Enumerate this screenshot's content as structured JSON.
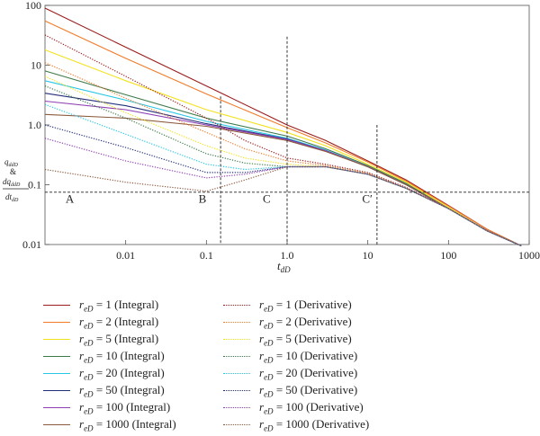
{
  "chart_data": {
    "type": "line",
    "xscale": "log",
    "yscale": "log",
    "xlim": [
      0.001,
      1000
    ],
    "ylim": [
      0.01,
      100
    ],
    "xlabel": "t_dD",
    "ylabel": "q_ddD & dq_ddD/dt_dD",
    "x_ticks": [
      {
        "value": 0.01,
        "label": "0.01"
      },
      {
        "value": 0.1,
        "label": "0.1"
      },
      {
        "value": 1,
        "label": "1.0"
      },
      {
        "value": 10,
        "label": "10"
      },
      {
        "value": 100,
        "label": "100"
      },
      {
        "value": 1000,
        "label": "1000"
      }
    ],
    "y_ticks": [
      {
        "value": 0.01,
        "label": "0.01"
      },
      {
        "value": 0.1,
        "label": "0.1"
      },
      {
        "value": 1,
        "label": "1.0"
      },
      {
        "value": 10,
        "label": "10"
      },
      {
        "value": 100,
        "label": "100"
      }
    ],
    "ref_hline": 0.075,
    "ref_vlines": [
      0.15,
      1.0,
      13
    ],
    "region_labels": [
      {
        "text": "A",
        "x": 0.0018,
        "y": 0.05
      },
      {
        "text": "B",
        "x": 0.08,
        "y": 0.05
      },
      {
        "text": "C",
        "x": 0.5,
        "y": 0.05
      },
      {
        "text": "C′",
        "x": 8.5,
        "y": 0.05
      }
    ],
    "series": [
      {
        "name": "rₑD = 1 (Integral)",
        "label_sym": "r",
        "label_sub": "eD",
        "label_rest": " = 1 (Integral)",
        "color": "#9b1c1c",
        "style": "solid",
        "x": [
          0.001,
          0.01,
          0.1,
          1,
          3,
          10,
          30,
          100,
          300,
          800
        ],
        "y": [
          90,
          20,
          4.5,
          1.0,
          0.55,
          0.25,
          0.12,
          0.045,
          0.018,
          0.0095
        ]
      },
      {
        "name": "rₑD = 2 (Integral)",
        "label_sym": "r",
        "label_sub": "eD",
        "label_rest": " = 2 (Integral)",
        "color": "#f07c2a",
        "style": "solid",
        "x": [
          0.001,
          0.01,
          0.1,
          1,
          3,
          10,
          30,
          100,
          300,
          800
        ],
        "y": [
          55,
          13,
          3.3,
          0.9,
          0.5,
          0.24,
          0.115,
          0.044,
          0.018,
          0.0095
        ]
      },
      {
        "name": "rₑD = 5 (Integral)",
        "label_sym": "r",
        "label_sub": "eD",
        "label_rest": " = 5 (Integral)",
        "color": "#f2e21e",
        "style": "solid",
        "x": [
          0.001,
          0.01,
          0.1,
          1,
          3,
          10,
          30,
          100,
          300,
          800
        ],
        "y": [
          18,
          5.5,
          1.8,
          0.75,
          0.45,
          0.22,
          0.11,
          0.042,
          0.017,
          0.0095
        ]
      },
      {
        "name": "rₑD = 10 (Integral)",
        "label_sym": "r",
        "label_sub": "eD",
        "label_rest": " = 10 (Integral)",
        "color": "#3d7a4a",
        "style": "solid",
        "x": [
          0.001,
          0.01,
          0.1,
          1,
          3,
          10,
          30,
          100,
          300,
          800
        ],
        "y": [
          8,
          3.2,
          1.3,
          0.65,
          0.4,
          0.21,
          0.105,
          0.04,
          0.017,
          0.0095
        ]
      },
      {
        "name": "rₑD = 20 (Integral)",
        "label_sym": "r",
        "label_sub": "eD",
        "label_rest": " = 20 (Integral)",
        "color": "#29c7e6",
        "style": "solid",
        "x": [
          0.001,
          0.01,
          0.1,
          1,
          3,
          10,
          30,
          100,
          300,
          800
        ],
        "y": [
          5.5,
          2.6,
          1.15,
          0.6,
          0.38,
          0.2,
          0.1,
          0.04,
          0.017,
          0.0095
        ]
      },
      {
        "name": "rₑD = 50 (Integral)",
        "label_sym": "r",
        "label_sub": "eD",
        "label_rest": " = 50 (Integral)",
        "color": "#232f7a",
        "style": "solid",
        "x": [
          0.001,
          0.01,
          0.1,
          1,
          3,
          10,
          30,
          100,
          300,
          800
        ],
        "y": [
          3.4,
          2.1,
          1.05,
          0.58,
          0.37,
          0.2,
          0.1,
          0.04,
          0.017,
          0.0095
        ]
      },
      {
        "name": "rₑD = 100 (Integral)",
        "label_sym": "r",
        "label_sub": "eD",
        "label_rest": " = 100 (Integral)",
        "color": "#8e3fb5",
        "style": "solid",
        "x": [
          0.001,
          0.01,
          0.1,
          1,
          3,
          10,
          30,
          100,
          300,
          800
        ],
        "y": [
          2.5,
          1.8,
          1.0,
          0.57,
          0.37,
          0.2,
          0.1,
          0.04,
          0.017,
          0.0095
        ]
      },
      {
        "name": "rₑD = 1000 (Integral)",
        "label_sym": "r",
        "label_sub": "eD",
        "label_rest": " = 1000 (Integral)",
        "color": "#8b5a3c",
        "style": "solid",
        "x": [
          0.001,
          0.01,
          0.1,
          1,
          3,
          10,
          30,
          100,
          300,
          800
        ],
        "y": [
          1.5,
          1.3,
          0.95,
          0.55,
          0.36,
          0.2,
          0.1,
          0.04,
          0.017,
          0.0095
        ]
      },
      {
        "name": "rₑD = 1 (Derivative)",
        "label_sym": "r",
        "label_sub": "eD",
        "label_rest": " = 1 (Derivative)",
        "color": "#9b1c1c",
        "style": "dotted",
        "x": [
          0.001,
          0.01,
          0.1,
          0.3,
          1,
          3,
          10,
          30,
          100,
          300,
          800
        ],
        "y": [
          32,
          6.5,
          1.3,
          0.55,
          0.28,
          0.22,
          0.16,
          0.09,
          0.04,
          0.017,
          0.0095
        ]
      },
      {
        "name": "rₑD = 2 (Derivative)",
        "label_sym": "r",
        "label_sub": "eD",
        "label_rest": " = 2 (Derivative)",
        "color": "#f07c2a",
        "style": "dotted",
        "x": [
          0.001,
          0.01,
          0.1,
          0.3,
          1,
          3,
          10,
          30,
          100,
          300,
          800
        ],
        "y": [
          11,
          2.8,
          0.75,
          0.4,
          0.25,
          0.21,
          0.155,
          0.088,
          0.04,
          0.017,
          0.0095
        ]
      },
      {
        "name": "rₑD = 5 (Derivative)",
        "label_sym": "r",
        "label_sub": "eD",
        "label_rest": " = 5 (Derivative)",
        "color": "#f2e21e",
        "style": "dotted",
        "x": [
          0.001,
          0.01,
          0.1,
          0.3,
          1,
          3,
          10,
          30,
          100,
          300,
          800
        ],
        "y": [
          6.5,
          1.6,
          0.45,
          0.28,
          0.22,
          0.2,
          0.15,
          0.087,
          0.04,
          0.017,
          0.0095
        ]
      },
      {
        "name": "rₑD = 10 (Derivative)",
        "label_sym": "r",
        "label_sub": "eD",
        "label_rest": " = 10 (Derivative)",
        "color": "#3d7a4a",
        "style": "dotted",
        "x": [
          0.001,
          0.01,
          0.1,
          0.3,
          1,
          3,
          10,
          30,
          100,
          300,
          800
        ],
        "y": [
          4.5,
          1.3,
          0.33,
          0.23,
          0.2,
          0.2,
          0.15,
          0.087,
          0.04,
          0.017,
          0.0095
        ]
      },
      {
        "name": "rₑD = 20 (Derivative)",
        "label_sym": "r",
        "label_sub": "eD",
        "label_rest": " = 20 (Derivative)",
        "color": "#29c7e6",
        "style": "dotted",
        "x": [
          0.001,
          0.01,
          0.1,
          0.3,
          1,
          3,
          10,
          30,
          100,
          300,
          800
        ],
        "y": [
          2.2,
          0.7,
          0.22,
          0.18,
          0.2,
          0.2,
          0.15,
          0.087,
          0.04,
          0.017,
          0.0095
        ]
      },
      {
        "name": "rₑD = 50 (Derivative)",
        "label_sym": "r",
        "label_sub": "eD",
        "label_rest": " = 50 (Derivative)",
        "color": "#232f7a",
        "style": "dotted",
        "x": [
          0.001,
          0.01,
          0.1,
          0.3,
          1,
          3,
          10,
          30,
          100,
          300,
          800
        ],
        "y": [
          1.0,
          0.42,
          0.16,
          0.16,
          0.2,
          0.2,
          0.15,
          0.087,
          0.04,
          0.017,
          0.0095
        ]
      },
      {
        "name": "rₑD = 100 (Derivative)",
        "label_sym": "r",
        "label_sub": "eD",
        "label_rest": " = 100 (Derivative)",
        "color": "#8e3fb5",
        "style": "dotted",
        "x": [
          0.001,
          0.01,
          0.1,
          0.3,
          1,
          3,
          10,
          30,
          100,
          300,
          800
        ],
        "y": [
          0.6,
          0.25,
          0.13,
          0.15,
          0.2,
          0.2,
          0.15,
          0.087,
          0.04,
          0.017,
          0.0095
        ]
      },
      {
        "name": "rₑD = 1000 (Derivative)",
        "label_sym": "r",
        "label_sub": "eD",
        "label_rest": " = 1000 (Derivative)",
        "color": "#8b5a3c",
        "style": "dotted",
        "x": [
          0.001,
          0.01,
          0.1,
          0.3,
          1,
          3,
          10,
          30,
          100,
          300,
          800
        ],
        "y": [
          0.18,
          0.11,
          0.078,
          0.12,
          0.2,
          0.2,
          0.15,
          0.087,
          0.04,
          0.017,
          0.0095
        ]
      }
    ]
  }
}
